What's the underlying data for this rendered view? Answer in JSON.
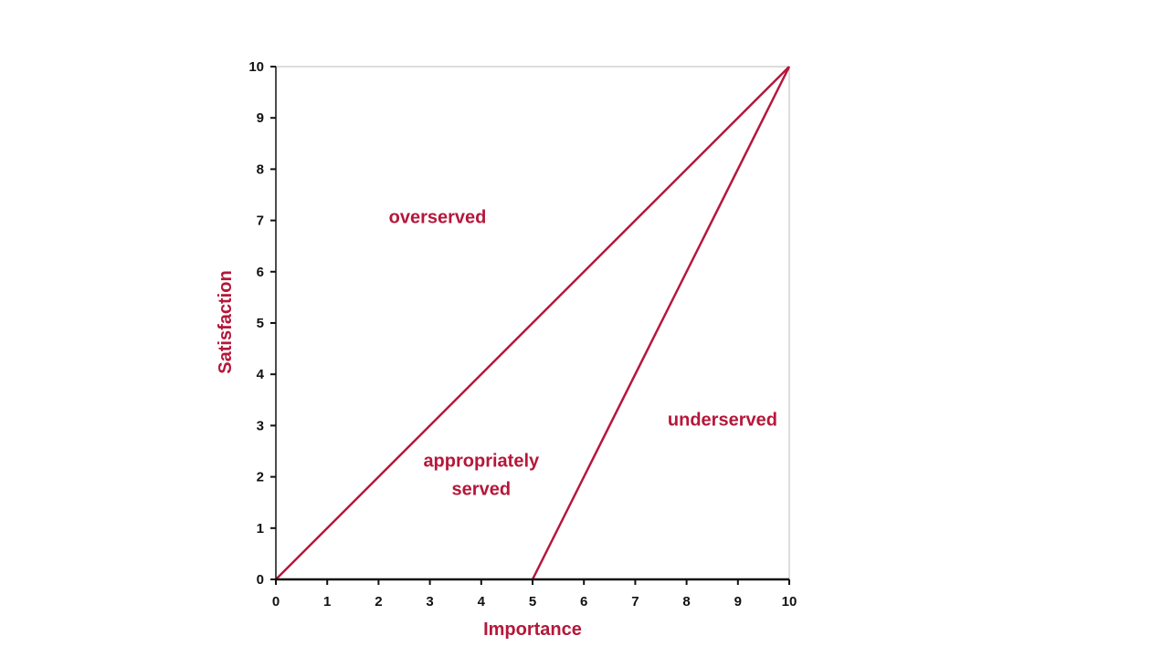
{
  "chart_data": {
    "type": "line",
    "title": "",
    "xlabel": "Importance",
    "ylabel": "Satisfaction",
    "xlim": [
      0,
      10
    ],
    "ylim": [
      0,
      10
    ],
    "x_ticks": [
      0,
      1,
      2,
      3,
      4,
      5,
      6,
      7,
      8,
      9,
      10
    ],
    "y_ticks": [
      0,
      1,
      2,
      3,
      4,
      5,
      6,
      7,
      8,
      9,
      10
    ],
    "grid": false,
    "series": [
      {
        "x": [
          0,
          10
        ],
        "y": [
          0,
          10
        ]
      },
      {
        "x": [
          5,
          10
        ],
        "y": [
          0,
          10
        ]
      }
    ],
    "annotations": [
      {
        "lines": [
          "overserved"
        ],
        "x": 3.15,
        "y": 6.95
      },
      {
        "lines": [
          "appropriately",
          "served"
        ],
        "x": 4.0,
        "y": 2.2
      },
      {
        "lines": [
          "underserved"
        ],
        "x": 8.7,
        "y": 3.0
      }
    ]
  },
  "colors": {
    "accent": "#b5173a",
    "axis": "#111111",
    "frame": "#bbbbbb"
  }
}
